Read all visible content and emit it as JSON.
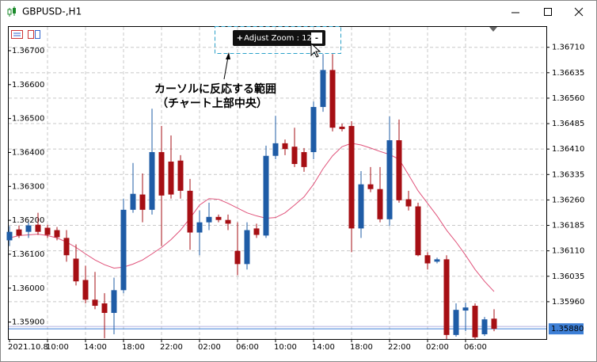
{
  "window": {
    "title": "GBPUSD-,H1"
  },
  "zoom_control": {
    "plus": "+",
    "label": "Adjust Zoom : 12",
    "minus": "-"
  },
  "annotation": {
    "lines": [
      "カーソルに反応する範囲",
      "（チャート上部中央）"
    ]
  },
  "chart_data": {
    "type": "candlestick",
    "categories": [
      "2021.10.8",
      null,
      null,
      null,
      "10:00",
      null,
      null,
      null,
      "14:00",
      null,
      null,
      null,
      "18:00",
      null,
      null,
      null,
      "22:00",
      null,
      null,
      null,
      "02:00",
      null,
      null,
      null,
      "06:00",
      null,
      null,
      null,
      "10:00",
      null,
      null,
      null,
      "14:00",
      null,
      null,
      null,
      "18:00",
      null,
      null,
      null,
      "22:00",
      null,
      null,
      null,
      "02:00",
      null,
      null,
      null,
      "06:00",
      null,
      null,
      null
    ],
    "open": [
      1.36141,
      1.36173,
      1.36166,
      1.36187,
      1.36178,
      1.36171,
      1.36148,
      1.36087,
      1.36024,
      1.35966,
      1.35955,
      1.35927,
      1.35994,
      1.36231,
      1.36276,
      1.36231,
      1.36401,
      1.36373,
      1.36376,
      1.36287,
      1.36164,
      1.36194,
      1.3621,
      1.36201,
      1.3611,
      1.36071,
      1.36176,
      1.36155,
      1.3639,
      1.36427,
      1.36417,
      1.36401,
      1.36401,
      1.36534,
      1.36643,
      1.36476,
      1.36478,
      1.36176,
      1.36306,
      1.36292,
      1.36203,
      1.36436,
      1.36262,
      1.36241,
      1.36097,
      1.36078,
      1.36085,
      1.35862,
      1.35934,
      1.35948,
      1.35864,
      1.3591
    ],
    "high": [
      1.36183,
      1.36185,
      1.36194,
      1.36222,
      1.36187,
      1.3618,
      1.36171,
      1.36129,
      1.36066,
      1.36048,
      1.35985,
      1.36031,
      1.36264,
      1.36369,
      1.36338,
      1.36529,
      1.36478,
      1.3645,
      1.36392,
      1.36322,
      1.36229,
      1.36252,
      1.36217,
      1.36217,
      1.36194,
      1.36194,
      1.3619,
      1.3642,
      1.36508,
      1.36438,
      1.36473,
      1.36413,
      1.3655,
      1.3669,
      1.3669,
      1.36485,
      1.36492,
      1.36345,
      1.36357,
      1.36357,
      1.36506,
      1.36497,
      1.36287,
      1.36252,
      1.36106,
      1.3609,
      1.36097,
      1.35955,
      1.35957,
      1.35955,
      1.35915,
      1.35938
    ],
    "low": [
      1.36124,
      1.36148,
      1.36148,
      1.36157,
      1.36148,
      1.36141,
      1.36078,
      1.36008,
      1.35955,
      1.35938,
      1.35852,
      1.35864,
      1.35985,
      1.36222,
      1.36194,
      1.36217,
      1.36124,
      1.36264,
      1.36264,
      1.36113,
      1.36097,
      1.36171,
      1.36194,
      1.36171,
      1.36038,
      1.36055,
      1.36148,
      1.36148,
      1.3638,
      1.36392,
      1.36357,
      1.36343,
      1.3638,
      1.3652,
      1.36462,
      1.36462,
      1.36106,
      1.36148,
      1.36283,
      1.36194,
      1.36183,
      1.36252,
      1.36229,
      1.36094,
      1.36055,
      1.36073,
      1.3585,
      1.35857,
      1.35873,
      1.3585,
      1.35859,
      1.35873
    ],
    "close": [
      1.36166,
      1.36155,
      1.36185,
      1.36166,
      1.36157,
      1.3615,
      1.36097,
      1.3602,
      1.35966,
      1.35948,
      1.35927,
      1.35994,
      1.36231,
      1.36278,
      1.36231,
      1.36401,
      1.36273,
      1.36276,
      1.36287,
      1.36164,
      1.36194,
      1.3621,
      1.36201,
      1.3619,
      1.36071,
      1.36171,
      1.36157,
      1.3639,
      1.36427,
      1.3641,
      1.36366,
      1.36357,
      1.36534,
      1.36643,
      1.36473,
      1.36469,
      1.36176,
      1.36306,
      1.36292,
      1.36203,
      1.36436,
      1.36259,
      1.36241,
      1.36097,
      1.36073,
      1.36085,
      1.35862,
      1.35936,
      1.35943,
      1.35855,
      1.35908,
      1.3588
    ],
    "up_color": "#1f5ca6",
    "down_color": "#a60f14",
    "overlays": [
      {
        "type": "line",
        "color": "#e0527a",
        "values": [
          1.36148,
          1.36155,
          1.36157,
          1.36159,
          1.36155,
          1.36148,
          1.36136,
          1.3612,
          1.36101,
          1.36083,
          1.36069,
          1.36059,
          1.36062,
          1.36071,
          1.36083,
          1.36101,
          1.3612,
          1.36143,
          1.36171,
          1.36206,
          1.36245,
          1.36264,
          1.36262,
          1.3625,
          1.36236,
          1.36222,
          1.36213,
          1.36206,
          1.36208,
          1.36222,
          1.36245,
          1.36269,
          1.36306,
          1.36352,
          1.3639,
          1.36417,
          1.36427,
          1.36422,
          1.36413,
          1.36403,
          1.36394,
          1.3638,
          1.36334,
          1.36287,
          1.3625,
          1.36213,
          1.36171,
          1.36136,
          1.36097,
          1.36055,
          1.3602,
          1.3599
        ]
      }
    ],
    "ylim": [
      1.3585,
      1.3677
    ],
    "yticks": [
      {
        "value": 1.359,
        "label": "1.35900"
      },
      {
        "value": 1.36,
        "label": "1.36000"
      },
      {
        "value": 1.361,
        "label": "1.36100"
      },
      {
        "value": 1.362,
        "label": "1.36200"
      },
      {
        "value": 1.363,
        "label": "1.36300"
      },
      {
        "value": 1.364,
        "label": "1.36400"
      },
      {
        "value": 1.365,
        "label": "1.36500"
      },
      {
        "value": 1.366,
        "label": "1.36600"
      },
      {
        "value": 1.367,
        "label": "1.36700"
      }
    ],
    "y2lim": [
      1.3585,
      1.3677
    ],
    "y2ticks": [
      {
        "value": 1.3596,
        "label": "1.35960"
      },
      {
        "value": 1.36035,
        "label": "1.36035"
      },
      {
        "value": 1.3611,
        "label": "1.36110"
      },
      {
        "value": 1.36185,
        "label": "1.36185"
      },
      {
        "value": 1.3626,
        "label": "1.36260"
      },
      {
        "value": 1.36335,
        "label": "1.36335"
      },
      {
        "value": 1.3641,
        "label": "1.36410"
      },
      {
        "value": 1.36485,
        "label": "1.36485"
      },
      {
        "value": 1.3656,
        "label": "1.36560"
      },
      {
        "value": 1.36635,
        "label": "1.36635"
      },
      {
        "value": 1.3671,
        "label": "1.36710"
      }
    ],
    "current_price": {
      "value": 1.3588,
      "label": "1.35880",
      "color": "#3d7fd6"
    },
    "grid": true
  }
}
